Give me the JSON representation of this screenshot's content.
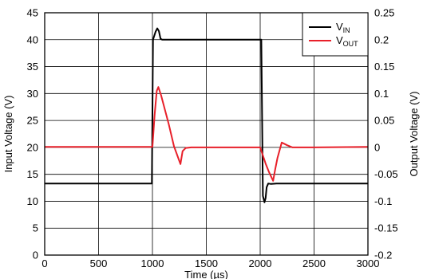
{
  "chart_data": {
    "type": "line",
    "xlabel": "Time (µs)",
    "ylabel_left": "Input Voltage (V)",
    "ylabel_right": "Output Voltage (V)",
    "xlim": [
      0,
      3000
    ],
    "ylim_left": [
      0,
      45
    ],
    "ylim_right": [
      -0.2,
      0.25
    ],
    "x_ticks": [
      0,
      500,
      1000,
      1500,
      2000,
      2500,
      3000
    ],
    "y_ticks_left": [
      0,
      5,
      10,
      15,
      20,
      25,
      30,
      35,
      40,
      45
    ],
    "y_ticks_right": [
      -0.2,
      -0.15,
      -0.1,
      -0.05,
      0,
      0.05,
      0.1,
      0.15,
      0.2,
      0.25
    ],
    "y_tick_labels_right": [
      "-0.2",
      "-0.15",
      "-0.1",
      "-0.05",
      "0",
      "0.05",
      "0.1",
      "0.15",
      "0.2",
      "0.25"
    ],
    "grid": true,
    "legend_position": "top-right",
    "series": [
      {
        "name": "VIN",
        "name_main": "V",
        "name_sub": "IN",
        "axis": "left",
        "color": "#000000",
        "x": [
          0,
          995,
          1005,
          1030,
          1045,
          1060,
          1075,
          1090,
          1150,
          1500,
          1900,
          2010,
          2025,
          2040,
          2050,
          2060,
          2075,
          2100,
          2150,
          2500,
          3000
        ],
        "y": [
          13.3,
          13.3,
          40,
          41.5,
          42.1,
          41.6,
          40.2,
          40,
          40,
          40,
          40,
          40,
          11,
          9.8,
          10.6,
          12.6,
          13.3,
          13.2,
          13.3,
          13.3,
          13.3
        ]
      },
      {
        "name": "VOUT",
        "name_main": "V",
        "name_sub": "OUT",
        "axis": "right",
        "color": "#e8202a",
        "x": [
          0,
          1000,
          1020,
          1040,
          1055,
          1080,
          1150,
          1200,
          1260,
          1280,
          1310,
          1360,
          1500,
          1900,
          2000,
          2050,
          2080,
          2120,
          2140,
          2160,
          2200,
          2250,
          2300,
          2500,
          3000
        ],
        "y": [
          0.001,
          0.001,
          0.06,
          0.105,
          0.112,
          0.097,
          0.044,
          0.002,
          -0.031,
          -0.007,
          -0.001,
          0.0,
          0.0,
          0.0,
          0.0,
          -0.03,
          -0.045,
          -0.062,
          -0.04,
          -0.02,
          0.009,
          0.004,
          0.0,
          0.0,
          0.001
        ]
      }
    ]
  }
}
